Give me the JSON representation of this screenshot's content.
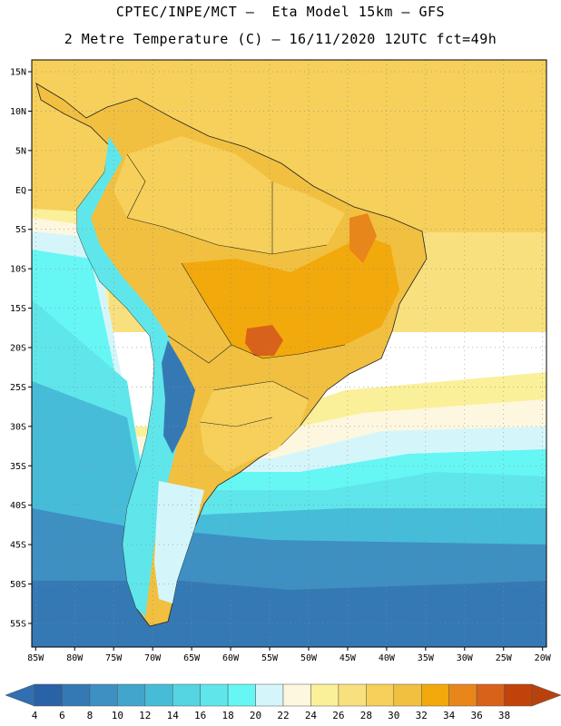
{
  "header": {
    "title_line1": "CPTEC/INPE/MCT –  Eta Model 15km – GFS",
    "title_line2": "2 Metre Temperature (C) – 16/11/2020 12UTC fct=49h"
  },
  "map": {
    "lat_labels": [
      "15N",
      "10N",
      "5N",
      "EQ",
      "5S",
      "10S",
      "15S",
      "20S",
      "25S",
      "30S",
      "35S",
      "40S",
      "45S",
      "50S",
      "55S"
    ],
    "lon_labels": [
      "85W",
      "80W",
      "75W",
      "70W",
      "65W",
      "60W",
      "55W",
      "50W",
      "45W",
      "40W",
      "35W",
      "30W",
      "25W",
      "20W"
    ],
    "lat_values": [
      15,
      10,
      5,
      0,
      -5,
      -10,
      -15,
      -20,
      -25,
      -30,
      -35,
      -40,
      -45,
      -50,
      -55
    ],
    "lon_values": [
      -85,
      -80,
      -75,
      -70,
      -65,
      -60,
      -55,
      -50,
      -45,
      -40,
      -35,
      -30,
      -25,
      -20
    ],
    "extent": {
      "lon_min": -85.5,
      "lon_max": -19.5,
      "lat_min": -58,
      "lat_max": 16.5
    }
  },
  "colorbar": {
    "labels": [
      "4",
      "6",
      "8",
      "10",
      "12",
      "14",
      "16",
      "18",
      "20",
      "22",
      "24",
      "26",
      "28",
      "30",
      "32",
      "34",
      "36",
      "38"
    ],
    "colors": [
      "#2a62a8",
      "#3579b4",
      "#3e8fc2",
      "#42a6cc",
      "#47bcd8",
      "#55d4e2",
      "#5fe6ea",
      "#66f6f4",
      "#d4f6fb",
      "#fdf7e0",
      "#fbf09a",
      "#f9e07e",
      "#f6d05a",
      "#f1c040",
      "#f2a90c",
      "#e8861c",
      "#d9621a",
      "#c24309"
    ],
    "low_color": "#3070b0",
    "high_color": "#b8420e"
  }
}
